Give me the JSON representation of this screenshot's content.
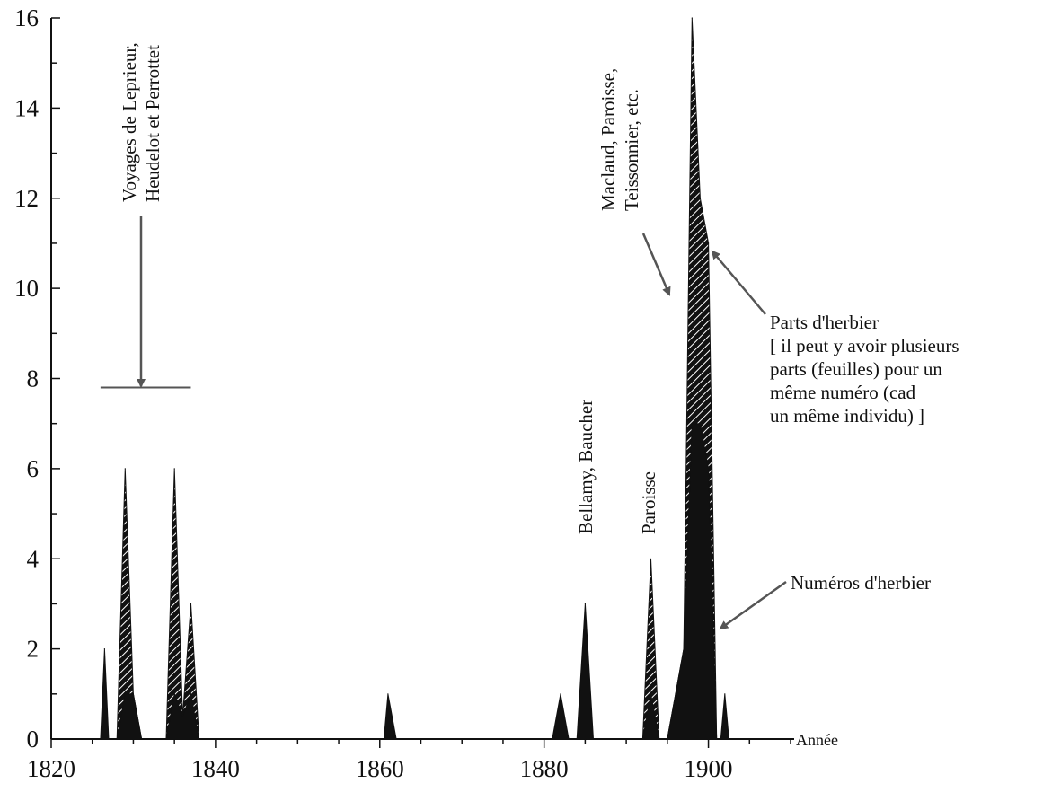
{
  "chart_data": {
    "type": "area",
    "title": "",
    "xlabel": "Année",
    "ylabel": "",
    "xlim": [
      1820,
      1910
    ],
    "ylim": [
      0,
      16
    ],
    "x_ticks": [
      1820,
      1840,
      1860,
      1880,
      1900
    ],
    "y_ticks": [
      0,
      2,
      4,
      6,
      8,
      10,
      12,
      14,
      16
    ],
    "grid": false,
    "series": [
      {
        "name": "Parts d'herbier",
        "fill": "hatched",
        "points": [
          [
            1828,
            0
          ],
          [
            1829,
            6
          ],
          [
            1830,
            1
          ],
          [
            1831,
            0
          ],
          [
            1834,
            0
          ],
          [
            1835,
            6
          ],
          [
            1836,
            0.5
          ],
          [
            1837,
            3
          ],
          [
            1838,
            0
          ],
          [
            1892,
            0
          ],
          [
            1893,
            4
          ],
          [
            1894,
            0
          ],
          [
            1895,
            0
          ],
          [
            1896,
            1
          ],
          [
            1897,
            2
          ],
          [
            1898,
            16
          ],
          [
            1899,
            12
          ],
          [
            1900,
            11
          ],
          [
            1901,
            0
          ]
        ]
      },
      {
        "name": "Numéros d'herbier",
        "fill": "solid",
        "points": [
          [
            1826,
            0
          ],
          [
            1826.5,
            2
          ],
          [
            1827,
            0
          ],
          [
            1828,
            0
          ],
          [
            1829,
            1
          ],
          [
            1830,
            1
          ],
          [
            1831,
            0
          ],
          [
            1834,
            0
          ],
          [
            1835,
            1
          ],
          [
            1836,
            0.5
          ],
          [
            1837,
            1
          ],
          [
            1838,
            0
          ],
          [
            1860.5,
            0
          ],
          [
            1861,
            1
          ],
          [
            1862,
            0
          ],
          [
            1881,
            0
          ],
          [
            1882,
            1
          ],
          [
            1883,
            0
          ],
          [
            1884,
            0
          ],
          [
            1885,
            3
          ],
          [
            1886,
            0
          ],
          [
            1892,
            0
          ],
          [
            1893,
            1
          ],
          [
            1894,
            0
          ],
          [
            1895,
            0
          ],
          [
            1896,
            1
          ],
          [
            1897,
            2
          ],
          [
            1898,
            7
          ],
          [
            1899,
            7
          ],
          [
            1900,
            6
          ],
          [
            1901,
            0
          ],
          [
            1901.5,
            0
          ],
          [
            1902,
            1
          ],
          [
            1902.5,
            0
          ]
        ]
      }
    ],
    "annotations": [
      {
        "lines": [
          "Voyages de Leprieur,",
          "Heudelot et Perrottet"
        ],
        "orientation": "vertical"
      },
      {
        "lines": [
          "Bellamy, Baucher"
        ],
        "orientation": "vertical"
      },
      {
        "lines": [
          "Paroisse"
        ],
        "orientation": "vertical"
      },
      {
        "lines": [
          "Maclaud, Paroisse,",
          "Teissonnier, etc."
        ],
        "orientation": "vertical"
      },
      {
        "lines": [
          "Parts d'herbier",
          "[ il peut y avoir plusieurs",
          "parts (feuilles) pour un",
          "même numéro (cad",
          "un même individu) ]"
        ],
        "orientation": "horizontal"
      },
      {
        "lines": [
          "Numéros d'herbier"
        ],
        "orientation": "horizontal"
      }
    ],
    "reference_line": {
      "y": 7.8,
      "x_range": [
        1826,
        1837
      ]
    }
  }
}
